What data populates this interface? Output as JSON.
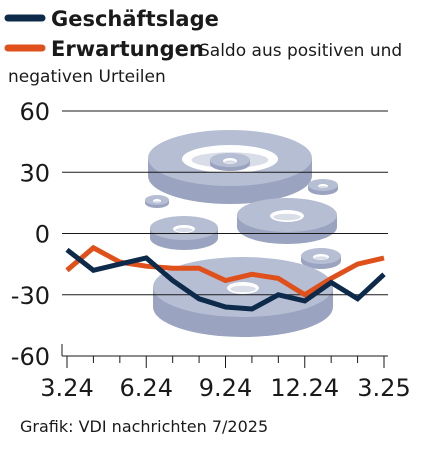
{
  "legend": {
    "series_1_label": "Geschäftslage",
    "series_2_label": "Erwartungen",
    "note_line_1": "Saldo aus positiven und",
    "note_line_2": "negativen Urteilen"
  },
  "footer": {
    "source": "Grafik: VDI nachrichten 7/2025"
  },
  "colors": {
    "series_1": "#0d2a4a",
    "series_2": "#e0501b",
    "grid": "#1a1a1a",
    "washer": "#b6bed4"
  },
  "chart_data": {
    "type": "line",
    "title": "",
    "xlabel": "",
    "ylabel": "Saldo aus positiven und negativen Urteilen",
    "x_tick_labels": [
      "3.24",
      "6.24",
      "9.24",
      "12.24",
      "3.25"
    ],
    "y_ticks": [
      60,
      30,
      0,
      -30,
      -60
    ],
    "ylim": [
      -60,
      60
    ],
    "grid": true,
    "legend_position": "top-left",
    "x": [
      "3.24",
      "4.24",
      "5.24",
      "6.24",
      "7.24",
      "8.24",
      "9.24",
      "10.24",
      "11.24",
      "12.24",
      "1.25",
      "2.25",
      "3.25"
    ],
    "series": [
      {
        "name": "Geschäftslage",
        "color": "#0d2a4a",
        "values": [
          -8,
          -18,
          -15,
          -12,
          -23,
          -32,
          -36,
          -37,
          -30,
          -33,
          -24,
          -32,
          -20
        ]
      },
      {
        "name": "Erwartungen",
        "color": "#e0501b",
        "values": [
          -18,
          -7,
          -14,
          -16,
          -17,
          -17,
          -23,
          -20,
          -22,
          -30,
          -22,
          -15,
          -12
        ]
      }
    ]
  }
}
